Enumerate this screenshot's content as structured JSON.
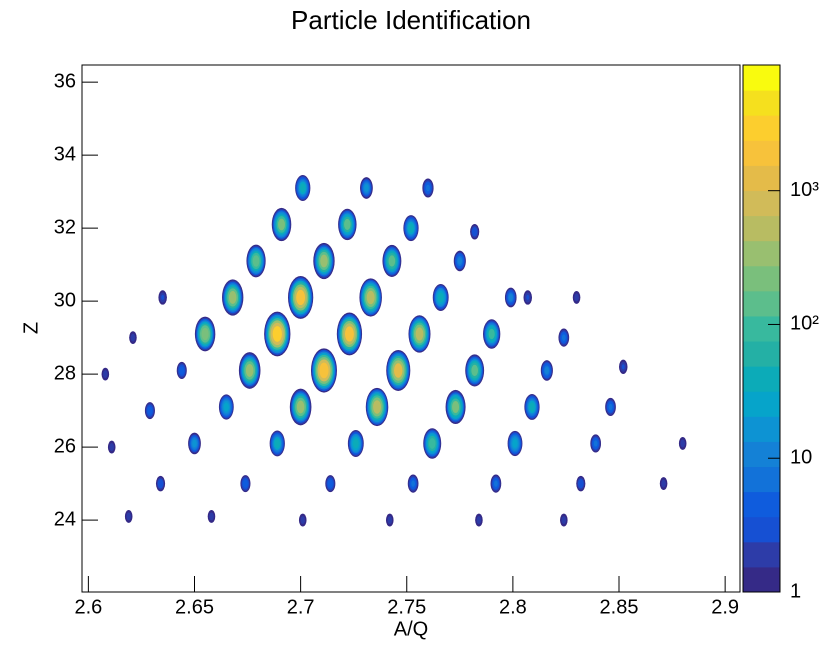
{
  "chart_data": {
    "type": "heatmap",
    "title": "Particle Identification",
    "x_label": "A/Q",
    "y_label": "Z",
    "x": [
      2.701,
      2.731,
      2.76,
      2.691,
      2.722,
      2.752,
      2.782,
      2.679,
      2.711,
      2.743,
      2.775,
      2.807,
      2.635,
      2.668,
      2.7,
      2.733,
      2.766,
      2.799,
      2.83,
      2.621,
      2.655,
      2.689,
      2.723,
      2.756,
      2.79,
      2.824,
      2.608,
      2.644,
      2.676,
      2.711,
      2.746,
      2.782,
      2.816,
      2.852,
      2.629,
      2.665,
      2.7,
      2.736,
      2.773,
      2.809,
      2.846,
      2.611,
      2.65,
      2.689,
      2.726,
      2.762,
      2.801,
      2.839,
      2.88,
      2.634,
      2.674,
      2.714,
      2.753,
      2.792,
      2.832,
      2.871,
      2.619,
      2.658,
      2.701,
      2.742,
      2.784,
      2.824
    ],
    "y": [
      33.1,
      33.1,
      33.1,
      32.1,
      32.1,
      32.0,
      31.9,
      31.1,
      31.1,
      31.1,
      31.1,
      30.1,
      30.1,
      30.1,
      30.1,
      30.1,
      30.1,
      30.1,
      30.1,
      29.0,
      29.1,
      29.1,
      29.1,
      29.1,
      29.1,
      29.0,
      28.0,
      28.1,
      28.1,
      28.1,
      28.1,
      28.1,
      28.1,
      28.2,
      27.0,
      27.1,
      27.1,
      27.1,
      27.1,
      27.1,
      27.1,
      26.0,
      26.1,
      26.1,
      26.1,
      26.1,
      26.1,
      26.1,
      26.1,
      25.0,
      25.0,
      25.0,
      25.0,
      25.0,
      25.0,
      25.0,
      24.1,
      24.1,
      24.0,
      24.0,
      24.0,
      24.0
    ],
    "values": [
      60,
      20,
      10,
      400,
      250,
      60,
      4,
      350,
      900,
      300,
      15,
      3,
      3,
      900,
      5000,
      1500,
      80,
      12,
      2,
      2,
      600,
      8000,
      5000,
      1200,
      150,
      8,
      2,
      6,
      1000,
      7000,
      3000,
      300,
      15,
      3,
      6,
      50,
      1000,
      1500,
      500,
      60,
      8,
      2,
      20,
      60,
      80,
      200,
      50,
      8,
      2,
      4,
      6,
      6,
      8,
      8,
      4,
      2,
      2,
      2,
      2,
      2,
      2,
      2
    ],
    "xlim": [
      2.597,
      2.907
    ],
    "ylim": [
      22.03,
      36.47
    ],
    "zlim": [
      1,
      8700
    ],
    "zlog": true,
    "xticks": [
      {
        "value": 2.6,
        "label": "2.6"
      },
      2.65,
      {
        "value": 2.7,
        "label": "2.7"
      },
      2.75,
      {
        "value": 2.8,
        "label": "2.8"
      },
      2.85,
      {
        "value": 2.9,
        "label": "2.9"
      }
    ],
    "yticks": [
      24,
      26,
      28,
      30,
      32,
      34,
      36
    ],
    "zticks": [
      1,
      10,
      {
        "value": 100,
        "label": "10²"
      },
      {
        "value": 1000,
        "label": "10³"
      }
    ],
    "colormap": [
      "#352a87",
      "#2d3ca8",
      "#1650d3",
      "#0f5cdd",
      "#1272d9",
      "#1481d6",
      "#0d93d3",
      "#06a4ca",
      "#0cabb8",
      "#24b0a5",
      "#38b99e",
      "#5cbe8c",
      "#7abf7c",
      "#99bf70",
      "#b8bc62",
      "#d1bb59",
      "#e4bb49",
      "#f7c23b",
      "#fcce2e",
      "#f5e01e",
      "#f9fb0e"
    ]
  }
}
